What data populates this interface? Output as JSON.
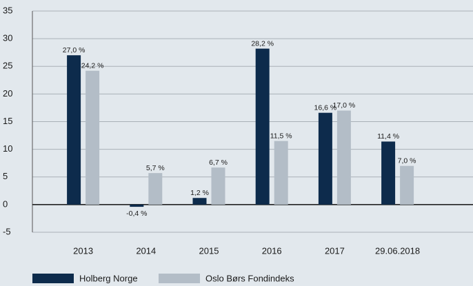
{
  "chart_data": {
    "type": "bar",
    "categories": [
      "2013",
      "2014",
      "2015",
      "2016",
      "2017",
      "29.06.2018"
    ],
    "series": [
      {
        "name": "Holberg Norge",
        "color": "#0d2b4c",
        "values": [
          27.0,
          -0.4,
          1.2,
          28.2,
          16.6,
          11.4
        ],
        "value_labels": [
          "27,0 %",
          "-0,4 %",
          "1,2 %",
          "28,2 %",
          "16,6 %",
          "11,4 %"
        ]
      },
      {
        "name": "Oslo Børs Fondindeks",
        "color": "#b3bdc7",
        "values": [
          24.2,
          5.7,
          6.7,
          11.5,
          17.0,
          7.0
        ],
        "value_labels": [
          "24,2 %",
          "5,7 %",
          "6,7 %",
          "11,5 %",
          "17,0 %",
          "7,0 %"
        ]
      }
    ],
    "ylim": [
      -5,
      35
    ],
    "yticks": [
      -5,
      0,
      5,
      10,
      15,
      20,
      25,
      30,
      35
    ],
    "grid": true,
    "legend": "bottom"
  }
}
